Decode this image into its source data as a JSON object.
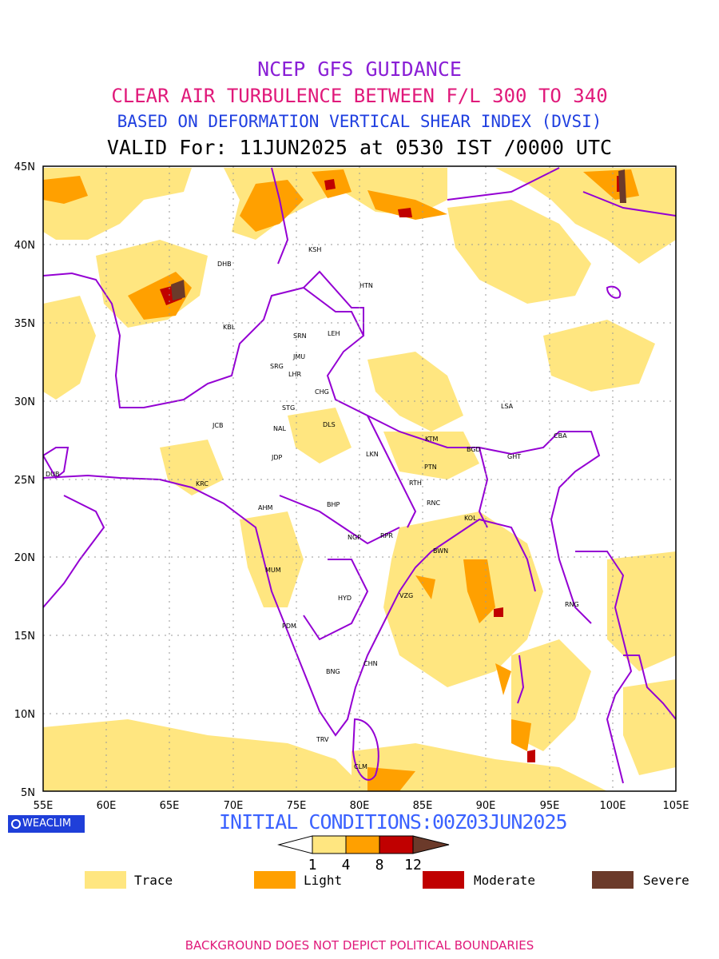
{
  "titles": {
    "line1": "NCEP GFS GUIDANCE",
    "line2": "CLEAR AIR TURBULENCE BETWEEN F/L 300 TO 340",
    "line3": "BASED ON DEFORMATION VERTICAL SHEAR INDEX (DVSI)",
    "line4": "VALID For: 11JUN2025 at 0530 IST /0000 UTC"
  },
  "colors": {
    "line1": "#8a1fd6",
    "line2": "#e0197a",
    "line3": "#1f3fe0",
    "line4": "#000000",
    "trace": "#ffe680",
    "light": "#ffa000",
    "moderate": "#c00000",
    "severe": "#6b3a2a",
    "boundary": "#9400d3",
    "initial": "#3b62ff",
    "footer": "#e0197a"
  },
  "axes": {
    "lon_labels": [
      "55E",
      "60E",
      "65E",
      "70E",
      "75E",
      "80E",
      "85E",
      "90E",
      "95E",
      "100E",
      "105E"
    ],
    "lat_labels": [
      "45N",
      "40N",
      "35N",
      "30N",
      "25N",
      "20N",
      "15N",
      "10N",
      "5N"
    ]
  },
  "cities": [
    {
      "code": "KSH"
    },
    {
      "code": "HTN"
    },
    {
      "code": "DHB"
    },
    {
      "code": "KBL"
    },
    {
      "code": "SRN"
    },
    {
      "code": "LEH"
    },
    {
      "code": "JMU"
    },
    {
      "code": "SRG"
    },
    {
      "code": "LHR"
    },
    {
      "code": "CHG"
    },
    {
      "code": "STG"
    },
    {
      "code": "LSA"
    },
    {
      "code": "JCB"
    },
    {
      "code": "DLS"
    },
    {
      "code": "NAL"
    },
    {
      "code": "KTM"
    },
    {
      "code": "CBA"
    },
    {
      "code": "BGD"
    },
    {
      "code": "GHT"
    },
    {
      "code": "JDP"
    },
    {
      "code": "LKN"
    },
    {
      "code": "PTN"
    },
    {
      "code": "DUB"
    },
    {
      "code": "KRC"
    },
    {
      "code": "RTH"
    },
    {
      "code": "AHM"
    },
    {
      "code": "BHP"
    },
    {
      "code": "RNC"
    },
    {
      "code": "KOL"
    },
    {
      "code": "NGP"
    },
    {
      "code": "RPR"
    },
    {
      "code": "BWN"
    },
    {
      "code": "MUM"
    },
    {
      "code": "HYD"
    },
    {
      "code": "VZG"
    },
    {
      "code": "RNG"
    },
    {
      "code": "PDM"
    },
    {
      "code": "CHN"
    },
    {
      "code": "BNG"
    },
    {
      "code": "TRV"
    },
    {
      "code": "CLM"
    }
  ],
  "logo": {
    "text": "WEACLIM"
  },
  "initial_conditions": "INITIAL CONDITIONS:00Z03JUN2025",
  "colorbar": {
    "ticks": [
      "1",
      "4",
      "8",
      "12"
    ]
  },
  "legend": [
    {
      "label": "Trace",
      "color": "#ffe680"
    },
    {
      "label": "Light",
      "color": "#ffa000"
    },
    {
      "label": "Moderate",
      "color": "#c00000"
    },
    {
      "label": "Severe",
      "color": "#6b3a2a"
    }
  ],
  "footer": "BACKGROUND DOES NOT DEPICT POLITICAL BOUNDARIES"
}
